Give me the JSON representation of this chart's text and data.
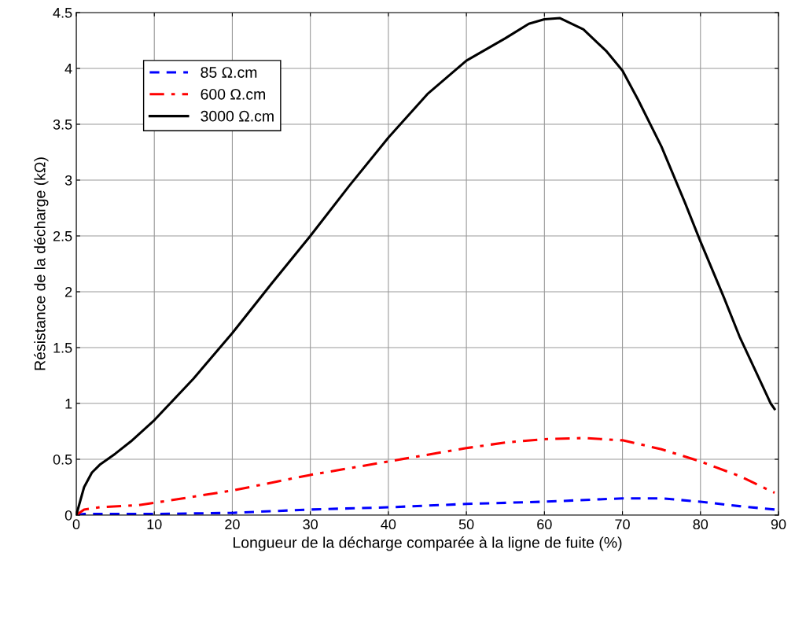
{
  "chart_data": {
    "type": "line",
    "xlabel": "Longueur de la décharge comparée à la ligne de fuite (%)",
    "ylabel": "Résistance de la décharge (kΩ)",
    "xlim": [
      0,
      90
    ],
    "ylim": [
      0,
      4.5
    ],
    "xticks": [
      0,
      10,
      20,
      30,
      40,
      50,
      60,
      70,
      80,
      90
    ],
    "yticks": [
      0,
      0.5,
      1,
      1.5,
      2,
      2.5,
      3,
      3.5,
      4,
      4.5
    ],
    "grid": true,
    "legend": "top left",
    "marker": "none",
    "series": [
      {
        "name": "85 Ω.cm",
        "color": "#0000ff",
        "line_style": "dashed",
        "x": [
          0,
          1,
          10,
          20,
          30,
          40,
          50,
          60,
          70,
          75,
          80,
          85,
          89.5
        ],
        "values": [
          0,
          0.01,
          0.01,
          0.02,
          0.05,
          0.07,
          0.1,
          0.12,
          0.15,
          0.15,
          0.12,
          0.08,
          0.05
        ]
      },
      {
        "name": "600 Ω.cm",
        "color": "#ff0000",
        "line_style": "dashdot",
        "x": [
          0,
          1,
          3,
          8,
          10,
          20,
          30,
          40,
          50,
          55,
          60,
          65,
          70,
          75,
          80,
          85,
          89.5
        ],
        "values": [
          0,
          0.05,
          0.07,
          0.09,
          0.11,
          0.22,
          0.36,
          0.48,
          0.6,
          0.65,
          0.68,
          0.69,
          0.67,
          0.59,
          0.48,
          0.35,
          0.2
        ]
      },
      {
        "name": "3000 Ω.cm",
        "color": "#000000",
        "line_style": "solid",
        "x": [
          0,
          1,
          2,
          3,
          5,
          7,
          10,
          15,
          20,
          25,
          30,
          35,
          40,
          45,
          50,
          55,
          58,
          60,
          62,
          65,
          68,
          70,
          72,
          75,
          78,
          80,
          83,
          85,
          87,
          89,
          89.5
        ],
        "values": [
          0,
          0.25,
          0.38,
          0.45,
          0.55,
          0.66,
          0.85,
          1.22,
          1.63,
          2.07,
          2.5,
          2.95,
          3.38,
          3.77,
          4.07,
          4.27,
          4.4,
          4.44,
          4.45,
          4.35,
          4.15,
          3.98,
          3.72,
          3.3,
          2.8,
          2.45,
          1.95,
          1.6,
          1.3,
          1.0,
          0.95
        ]
      }
    ]
  }
}
